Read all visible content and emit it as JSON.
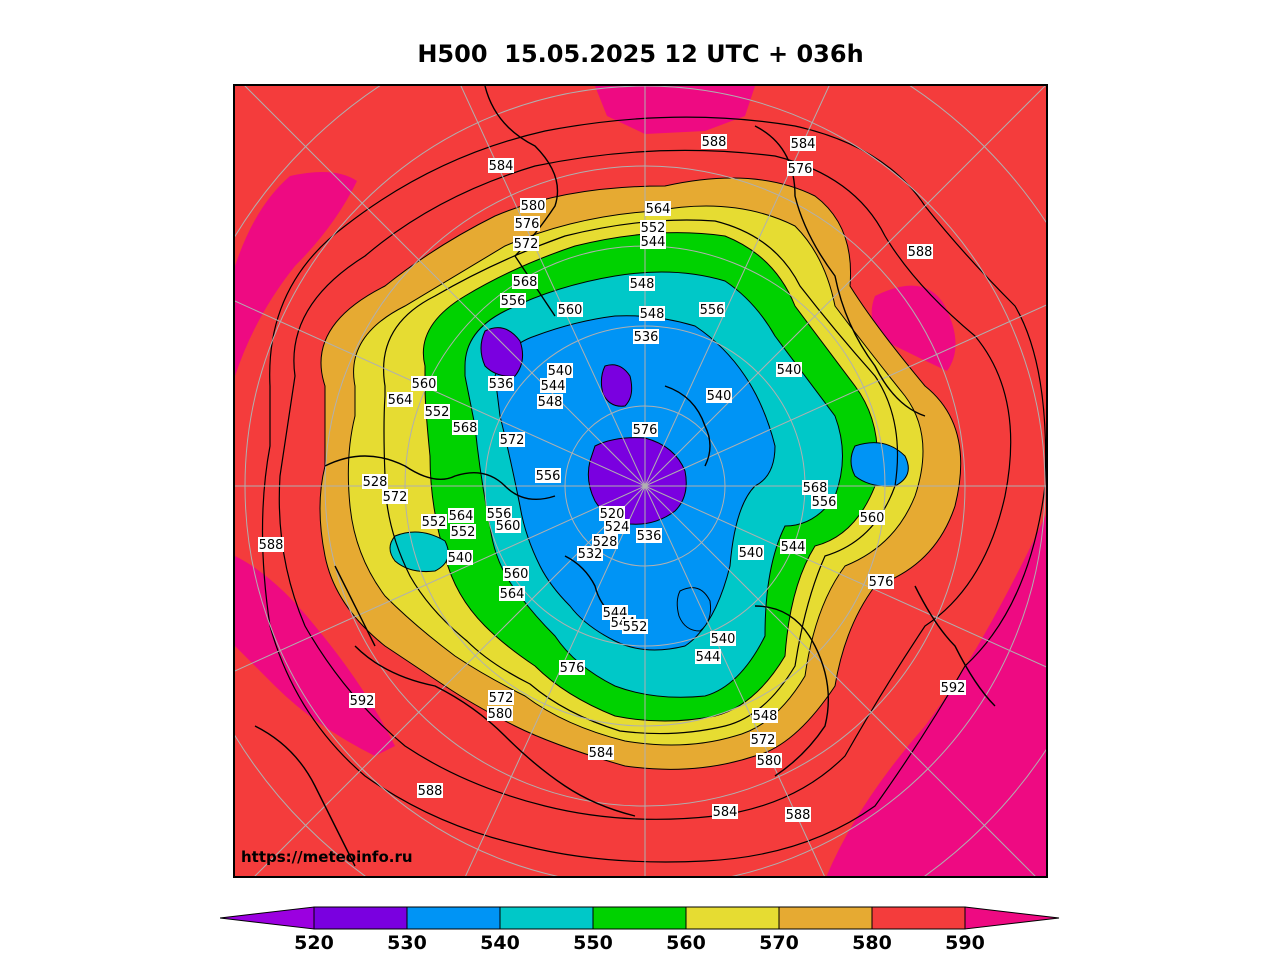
{
  "title": "H500  15.05.2025 12 UTC + 036h",
  "watermark": "https://meteoinfo.ru",
  "variable": "500 hPa geopotential height (dam)",
  "colorbar": {
    "ticks": [
      "520",
      "530",
      "540",
      "550",
      "560",
      "570",
      "580",
      "590"
    ],
    "bins": [
      {
        "range": "<520",
        "color": "#9b00e0"
      },
      {
        "range": "520-530",
        "color": "#7a00e0"
      },
      {
        "range": "530-540",
        "color": "#0094f5"
      },
      {
        "range": "540-550",
        "color": "#00c8c8"
      },
      {
        "range": "550-560",
        "color": "#00d200"
      },
      {
        "range": "560-570",
        "color": "#e6dc32"
      },
      {
        "range": "570-580",
        "color": "#e6aa32"
      },
      {
        "range": "580-590",
        "color": "#f43c3c"
      },
      {
        "range": ">590",
        "color": "#ee0a82"
      }
    ]
  },
  "contour_labels": [
    {
      "text": "584"
    },
    {
      "text": "588"
    },
    {
      "text": "584"
    },
    {
      "text": "576"
    },
    {
      "text": "580"
    },
    {
      "text": "576"
    },
    {
      "text": "564"
    },
    {
      "text": "552"
    },
    {
      "text": "544"
    },
    {
      "text": "572"
    },
    {
      "text": "588"
    },
    {
      "text": "568"
    },
    {
      "text": "548"
    },
    {
      "text": "556"
    },
    {
      "text": "560"
    },
    {
      "text": "556"
    },
    {
      "text": "548"
    },
    {
      "text": "536"
    },
    {
      "text": "540"
    },
    {
      "text": "560"
    },
    {
      "text": "536"
    },
    {
      "text": "540"
    },
    {
      "text": "544"
    },
    {
      "text": "540"
    },
    {
      "text": "564"
    },
    {
      "text": "548"
    },
    {
      "text": "552"
    },
    {
      "text": "568"
    },
    {
      "text": "572"
    },
    {
      "text": "576"
    },
    {
      "text": "528"
    },
    {
      "text": "556"
    },
    {
      "text": "572"
    },
    {
      "text": "568"
    },
    {
      "text": "552"
    },
    {
      "text": "556"
    },
    {
      "text": "560"
    },
    {
      "text": "556"
    },
    {
      "text": "564"
    },
    {
      "text": "552"
    },
    {
      "text": "560"
    },
    {
      "text": "520"
    },
    {
      "text": "524"
    },
    {
      "text": "536"
    },
    {
      "text": "528"
    },
    {
      "text": "588"
    },
    {
      "text": "532"
    },
    {
      "text": "540"
    },
    {
      "text": "540"
    },
    {
      "text": "544"
    },
    {
      "text": "560"
    },
    {
      "text": "576"
    },
    {
      "text": "564"
    },
    {
      "text": "544"
    },
    {
      "text": "544"
    },
    {
      "text": "552"
    },
    {
      "text": "540"
    },
    {
      "text": "576"
    },
    {
      "text": "544"
    },
    {
      "text": "592"
    },
    {
      "text": "592"
    },
    {
      "text": "572"
    },
    {
      "text": "548"
    },
    {
      "text": "580"
    },
    {
      "text": "572"
    },
    {
      "text": "584"
    },
    {
      "text": "580"
    },
    {
      "text": "588"
    },
    {
      "text": "584"
    },
    {
      "text": "588"
    }
  ]
}
